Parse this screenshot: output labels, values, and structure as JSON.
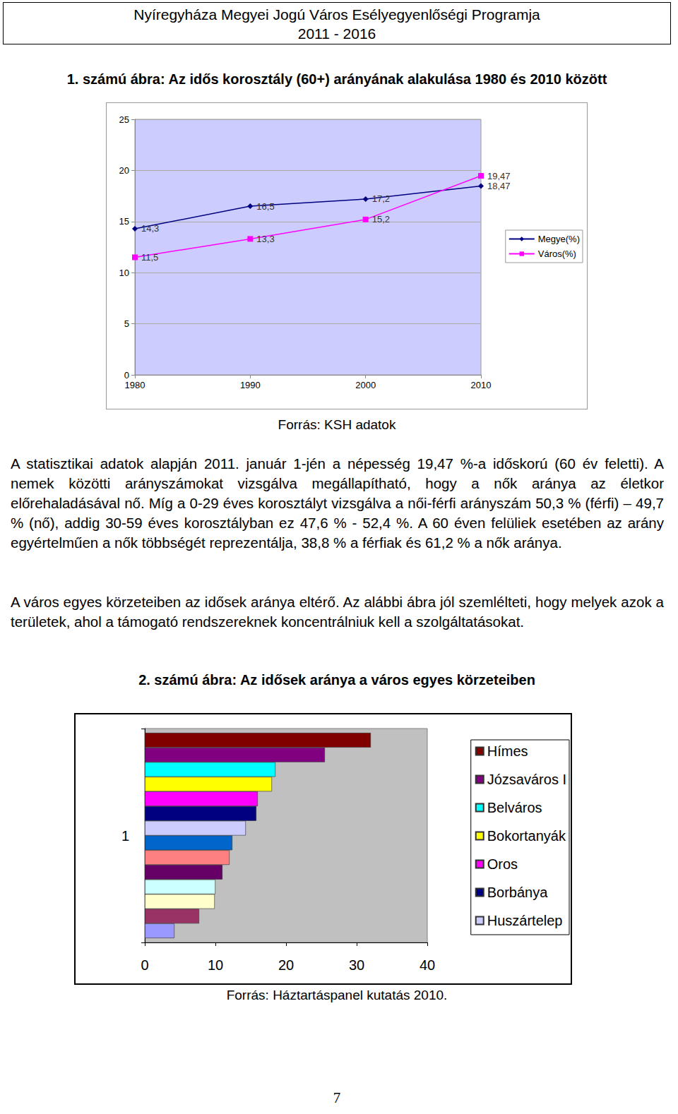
{
  "header": {
    "title": "Nyíregyháza Megyei Jogú Város Esélyegyenlőségi Programja",
    "period": "2011 - 2016"
  },
  "chart_data": [
    {
      "type": "line",
      "title": "1. számú ábra: Az idős korosztály (60+) arányának alakulása 1980 és 2010 között",
      "source": "Forrás: KSH adatok",
      "x": [
        1980,
        1990,
        2000,
        2010
      ],
      "xlim": [
        1980,
        2010
      ],
      "xticks": [
        1980,
        1990,
        2000,
        2010
      ],
      "ylim": [
        0,
        25
      ],
      "yticks": [
        0,
        5,
        10,
        15,
        20,
        25
      ],
      "grid": true,
      "legend": "right",
      "data_labels": true,
      "series": [
        {
          "name": "Megye(%)",
          "color": "#000080",
          "marker": "diamond",
          "values": [
            14.3,
            16.5,
            17.2,
            18.47
          ],
          "value_labels": [
            "14,3",
            "16,5",
            "17,2",
            "18,47"
          ]
        },
        {
          "name": "Város(%)",
          "color": "#ff00ff",
          "marker": "square",
          "values": [
            11.5,
            13.3,
            15.2,
            19.47
          ],
          "value_labels": [
            "11,5",
            "13,3",
            "15,2",
            "19,47"
          ]
        }
      ]
    },
    {
      "type": "bar",
      "orientation": "horizontal",
      "title": "2. számú ábra: Az idősek aránya a város egyes körzeteiben",
      "source": "Forrás: Háztartáspanel kutatás 2010.",
      "categories": [
        "1"
      ],
      "xlim": [
        0,
        40
      ],
      "xticks": [
        0,
        10,
        20,
        30,
        40
      ],
      "grid": false,
      "legend": "right",
      "series": [
        {
          "name": "Hímes",
          "color": "#800000",
          "values": [
            32
          ]
        },
        {
          "name": "Józsaváros I",
          "color": "#800080",
          "values": [
            25.5
          ]
        },
        {
          "name": "Belváros",
          "color": "#00ffff",
          "values": [
            18.5
          ]
        },
        {
          "name": "Bokortanyák",
          "color": "#ffff00",
          "values": [
            18
          ]
        },
        {
          "name": "Oros",
          "color": "#ff00ff",
          "values": [
            16
          ]
        },
        {
          "name": "Borbánya",
          "color": "#000080",
          "values": [
            15.8
          ]
        },
        {
          "name": "Huszártelep",
          "color": "#ccccff",
          "values": [
            14.3
          ]
        },
        {
          "name": null,
          "color": "#0066cc",
          "values": [
            12.4
          ]
        },
        {
          "name": null,
          "color": "#ff8080",
          "values": [
            12
          ]
        },
        {
          "name": null,
          "color": "#660066",
          "values": [
            11
          ]
        },
        {
          "name": null,
          "color": "#ccffff",
          "values": [
            10
          ]
        },
        {
          "name": null,
          "color": "#ffffcc",
          "values": [
            9.9
          ]
        },
        {
          "name": null,
          "color": "#993366",
          "values": [
            7.7
          ]
        },
        {
          "name": null,
          "color": "#9999ff",
          "values": [
            4.2
          ]
        }
      ]
    }
  ],
  "paragraphs": [
    "A statisztikai adatok alapján 2011. január 1-jén a népesség 19,47 %-a időskorú (60 év feletti). A nemek közötti arányszámokat vizsgálva megállapítható, hogy a nők aránya az életkor előrehaladásával nő. Míg a 0-29 éves korosztályt vizsgálva a női-férfi arányszám 50,3 % (férfi) – 49,7 % (nő), addig 30-59 éves korosztályban ez 47,6 % - 52,4 %. A 60 éven felüliek esetében az arány egyértelműen a nők többségét reprezentálja, 38,8 % a férfiak és 61,2 % a nők aránya.",
    "A város egyes körzeteiben az idősek aránya eltérő. Az alábbi ábra jól szemlélteti, hogy melyek azok a területek, ahol a támogató rendszereknek koncentrálniuk kell a szolgáltatásokat."
  ],
  "page_number": "7"
}
